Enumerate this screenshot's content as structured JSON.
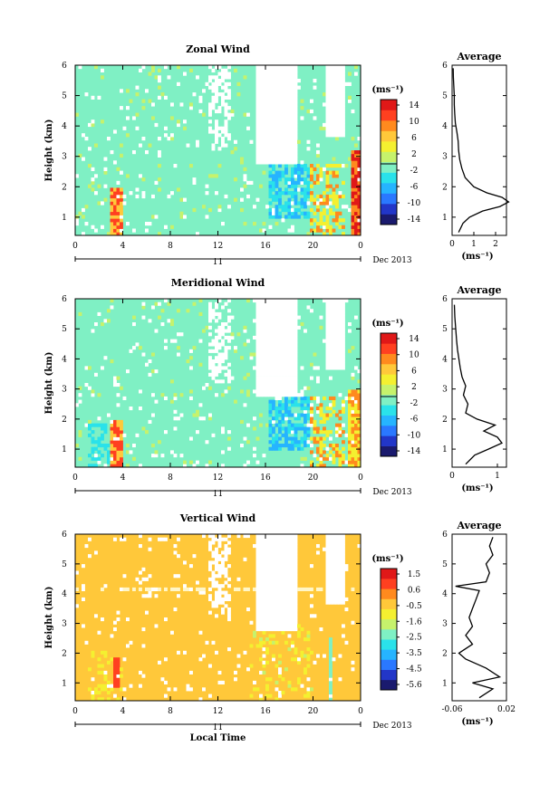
{
  "panels": [
    {
      "title": "Zonal Wind",
      "ylabel": "Height (km)",
      "yticks": [
        "1",
        "2",
        "3",
        "4",
        "5",
        "6"
      ],
      "xticks": [
        "0",
        "4",
        "8",
        "12",
        "16",
        "20",
        "0"
      ],
      "day_label": "11",
      "date_label": "Dec 2013",
      "unit": "(ms⁻¹)",
      "cbar_ticks": [
        "14",
        "10",
        "6",
        "2",
        "-2",
        "-6",
        "-10",
        "-14"
      ],
      "avg_title": "Average",
      "avg_xticks": [
        "0",
        "1",
        "2"
      ],
      "avg_xlabel": "(ms⁻¹)",
      "avg_yticks": [
        "1",
        "2",
        "3",
        "4",
        "5",
        "6"
      ]
    },
    {
      "title": "Meridional Wind",
      "ylabel": "Height (km)",
      "yticks": [
        "1",
        "2",
        "3",
        "4",
        "5",
        "6"
      ],
      "xticks": [
        "0",
        "4",
        "8",
        "12",
        "16",
        "20",
        "0"
      ],
      "day_label": "11",
      "date_label": "Dec 2013",
      "unit": "(ms⁻¹)",
      "cbar_ticks": [
        "14",
        "10",
        "6",
        "2",
        "-2",
        "-6",
        "-10",
        "-14"
      ],
      "avg_title": "Average",
      "avg_xticks": [
        "0",
        "1"
      ],
      "avg_xlabel": "(ms⁻¹)",
      "avg_yticks": [
        "1",
        "2",
        "3",
        "4",
        "5",
        "6"
      ]
    },
    {
      "title": "Vertical Wind",
      "ylabel": "Height (km)",
      "yticks": [
        "1",
        "2",
        "3",
        "4",
        "5",
        "6"
      ],
      "xticks": [
        "0",
        "4",
        "8",
        "12",
        "16",
        "20",
        "0"
      ],
      "day_label": "11",
      "date_label": "Dec 2013",
      "xlabel": "Local Time",
      "unit": "(ms⁻¹)",
      "cbar_ticks": [
        "1.5",
        "0.6",
        "-0.5",
        "-1.6",
        "-2.5",
        "-3.5",
        "-4.5",
        "-5.6"
      ],
      "avg_title": "Average",
      "avg_xticks": [
        "-0.06",
        "0.02"
      ],
      "avg_xlabel": "(ms⁻¹)",
      "avg_yticks": [
        "1",
        "2",
        "3",
        "4",
        "5",
        "6"
      ]
    }
  ],
  "colors": {
    "zonal_background": "#7ff0c4",
    "vertical_background": "#ffc83a",
    "colorbar": [
      "#1a1a6e",
      "#2236c8",
      "#2a78ff",
      "#26b4ff",
      "#2ae2ea",
      "#7ff0c4",
      "#c6f26c",
      "#f4f030",
      "#ffc83a",
      "#ff8a1e",
      "#ff4020",
      "#e01818"
    ]
  },
  "chart_data": [
    {
      "type": "heatmap",
      "title": "Zonal Wind",
      "xlabel": "",
      "ylabel": "Height (km)",
      "xlim": [
        0,
        24
      ],
      "ylim": [
        0.4,
        6
      ],
      "colorbar_range": [
        -14,
        14
      ],
      "average_profile": {
        "title": "Average",
        "xlabel": "(ms⁻¹)",
        "xlim": [
          0,
          2.5
        ],
        "height": [
          0.5,
          0.8,
          1.0,
          1.2,
          1.35,
          1.5,
          1.65,
          1.8,
          2.0,
          2.3,
          2.6,
          2.9,
          3.2,
          3.5,
          3.8,
          4.1,
          4.4,
          4.7,
          5.0,
          5.3,
          5.6,
          5.9
        ],
        "value": [
          0.3,
          0.5,
          0.8,
          1.4,
          2.2,
          2.6,
          2.3,
          1.6,
          1.0,
          0.6,
          0.45,
          0.35,
          0.3,
          0.28,
          0.22,
          0.15,
          0.12,
          0.1,
          0.1,
          0.08,
          0.06,
          0.05
        ]
      }
    },
    {
      "type": "heatmap",
      "title": "Meridional Wind",
      "xlabel": "",
      "ylabel": "Height (km)",
      "xlim": [
        0,
        24
      ],
      "ylim": [
        0.4,
        6
      ],
      "colorbar_range": [
        -14,
        14
      ],
      "average_profile": {
        "title": "Average",
        "xlabel": "(ms⁻¹)",
        "xlim": [
          0,
          1.2
        ],
        "height": [
          0.5,
          0.8,
          1.0,
          1.2,
          1.4,
          1.6,
          1.8,
          2.0,
          2.2,
          2.5,
          2.8,
          3.1,
          3.4,
          3.7,
          4.0,
          4.3,
          4.6,
          5.0,
          5.4,
          5.8
        ],
        "value": [
          0.3,
          0.5,
          0.8,
          1.1,
          1.0,
          0.7,
          0.95,
          0.55,
          0.3,
          0.35,
          0.25,
          0.3,
          0.22,
          0.18,
          0.15,
          0.12,
          0.1,
          0.08,
          0.06,
          0.05
        ]
      }
    },
    {
      "type": "heatmap",
      "title": "Vertical Wind",
      "xlabel": "Local Time",
      "ylabel": "Height (km)",
      "xlim": [
        0,
        24
      ],
      "ylim": [
        0.4,
        6
      ],
      "colorbar_range": [
        -5.6,
        1.5
      ],
      "average_profile": {
        "title": "Average",
        "xlabel": "(ms⁻¹)",
        "xlim": [
          -0.06,
          0.02
        ],
        "height": [
          0.5,
          0.8,
          1.0,
          1.2,
          1.5,
          1.8,
          2.0,
          2.3,
          2.6,
          2.9,
          3.2,
          3.5,
          3.8,
          4.1,
          4.25,
          4.4,
          4.7,
          5.0,
          5.3,
          5.6,
          5.9
        ],
        "value": [
          -0.02,
          0.0,
          -0.03,
          0.01,
          -0.01,
          -0.04,
          -0.05,
          -0.03,
          -0.04,
          -0.03,
          -0.035,
          -0.03,
          -0.025,
          -0.02,
          -0.055,
          -0.01,
          -0.005,
          -0.01,
          0.0,
          -0.005,
          0.0
        ]
      }
    }
  ]
}
